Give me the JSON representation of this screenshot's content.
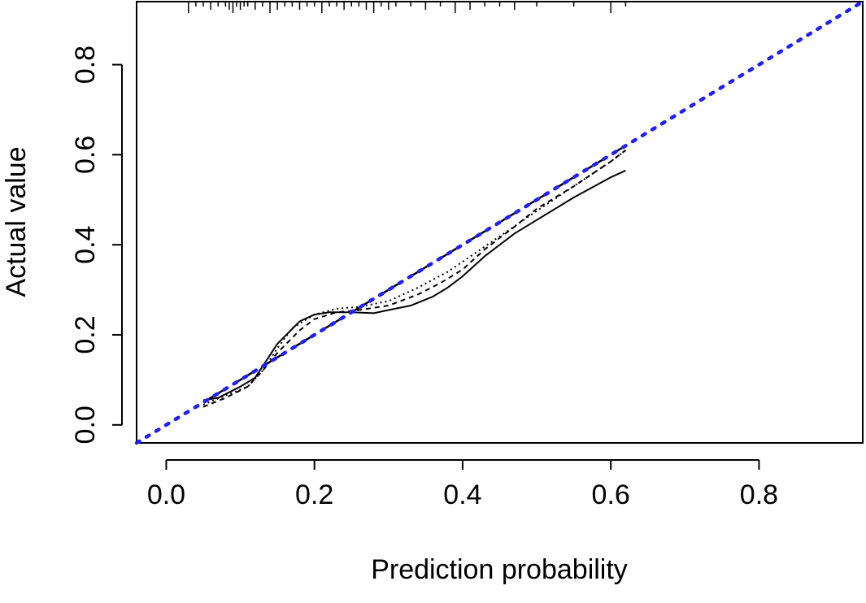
{
  "chart_data": {
    "type": "line",
    "title": "",
    "xlabel": "Prediction probability",
    "ylabel": "Actual value",
    "xlim": [
      -0.04,
      0.94
    ],
    "ylim": [
      -0.04,
      0.94
    ],
    "x_ticks": [
      0.0,
      0.2,
      0.4,
      0.6,
      0.8
    ],
    "x_tick_labels": [
      "0.0",
      "0.2",
      "0.4",
      "0.6",
      "0.8"
    ],
    "y_ticks": [
      0.0,
      0.2,
      0.4,
      0.6,
      0.8
    ],
    "y_tick_labels": [
      "0.0",
      "0.2",
      "0.4",
      "0.6",
      "0.8"
    ],
    "grid": false,
    "legend": null,
    "series": [
      {
        "style": "solid",
        "color": "#000000",
        "x": [
          0.05,
          0.07,
          0.1,
          0.12,
          0.15,
          0.18,
          0.2,
          0.22,
          0.25,
          0.28,
          0.3,
          0.33,
          0.36,
          0.38,
          0.4,
          0.43,
          0.47,
          0.5,
          0.55,
          0.6,
          0.62
        ],
        "y": [
          0.055,
          0.06,
          0.085,
          0.105,
          0.18,
          0.23,
          0.245,
          0.25,
          0.25,
          0.248,
          0.255,
          0.265,
          0.285,
          0.305,
          0.33,
          0.375,
          0.425,
          0.455,
          0.505,
          0.55,
          0.565
        ]
      },
      {
        "style": "dashed",
        "color": "#000000",
        "x": [
          0.05,
          0.08,
          0.11,
          0.13,
          0.15,
          0.18,
          0.2,
          0.23,
          0.26,
          0.3,
          0.34,
          0.37,
          0.4,
          0.43,
          0.47,
          0.5,
          0.55,
          0.6,
          0.62
        ],
        "y": [
          0.04,
          0.06,
          0.085,
          0.12,
          0.16,
          0.21,
          0.235,
          0.25,
          0.255,
          0.265,
          0.29,
          0.315,
          0.345,
          0.39,
          0.44,
          0.48,
          0.53,
          0.585,
          0.61
        ]
      },
      {
        "style": "dotted",
        "color": "#000000",
        "x": [
          0.05,
          0.08,
          0.11,
          0.13,
          0.15,
          0.17,
          0.2,
          0.23,
          0.26,
          0.3,
          0.34,
          0.38,
          0.42,
          0.46,
          0.5,
          0.55,
          0.6,
          0.62
        ],
        "y": [
          0.045,
          0.065,
          0.085,
          0.12,
          0.17,
          0.215,
          0.245,
          0.258,
          0.262,
          0.275,
          0.305,
          0.34,
          0.385,
          0.43,
          0.475,
          0.53,
          0.585,
          0.61
        ]
      },
      {
        "style": "dashed-long",
        "color": "#000000",
        "x": [
          0.05,
          0.2,
          0.4,
          0.6,
          0.62
        ],
        "y": [
          0.05,
          0.2,
          0.4,
          0.6,
          0.62
        ]
      },
      {
        "style": "dotted-reference",
        "color": "#1f1fff",
        "x": [
          -0.04,
          0.94
        ],
        "y": [
          -0.04,
          0.94
        ]
      }
    ],
    "rug_x": [
      0.03,
      0.04,
      0.05,
      0.06,
      0.07,
      0.08,
      0.085,
      0.09,
      0.095,
      0.1,
      0.105,
      0.11,
      0.12,
      0.13,
      0.14,
      0.15,
      0.16,
      0.17,
      0.18,
      0.19,
      0.2,
      0.21,
      0.22,
      0.23,
      0.24,
      0.25,
      0.26,
      0.27,
      0.28,
      0.29,
      0.3,
      0.31,
      0.33,
      0.35,
      0.37,
      0.39,
      0.41,
      0.43,
      0.45,
      0.47,
      0.5,
      0.55,
      0.6,
      0.62
    ]
  }
}
